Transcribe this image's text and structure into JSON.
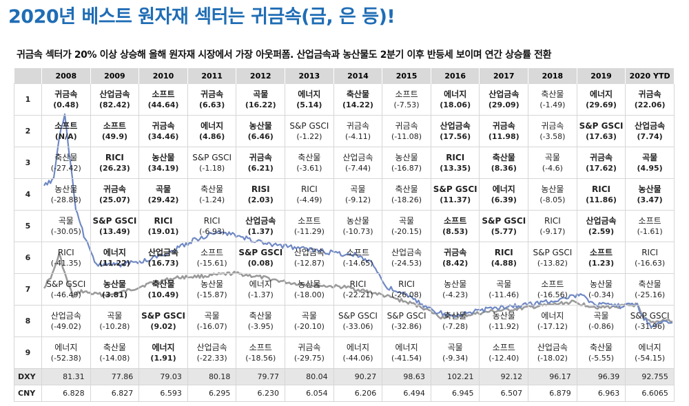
{
  "title": "2020년 베스트 원자재 섹터는 귀금속(금, 은 등)!",
  "subtitle": "귀금속 섹터가 20% 이상 상승해 올해 원자재 시장에서 가장 아웃퍼폼. 산업금속과 농산물도 2분기 이후 반등세 보이며 연간 상승률 전환",
  "colors": {
    "title": "#1f6db5",
    "header_bg": "#d9d9d9",
    "red": "#e11a1a",
    "blue": "#1d4fa6",
    "line_blue": "#6f88c4",
    "line_gray": "#9a9a9a"
  },
  "years": [
    "2008",
    "2009",
    "2010",
    "2011",
    "2012",
    "2013",
    "2014",
    "2015",
    "2016",
    "2017",
    "2018",
    "2019",
    "2020 YTD"
  ],
  "rows": [
    {
      "rank": "1",
      "cells": [
        {
          "name": "귀금속",
          "value": "(0.48)",
          "style": "b"
        },
        {
          "name": "산업금속",
          "value": "(82.42)",
          "style": "b"
        },
        {
          "name": "소프트",
          "value": "(44.64)",
          "style": "b"
        },
        {
          "name": "귀금속",
          "value": "(6.63)",
          "style": "b"
        },
        {
          "name": "곡물",
          "value": "(16.22)",
          "style": "b"
        },
        {
          "name": "에너지",
          "value": "(5.14)",
          "style": "b"
        },
        {
          "name": "축산물",
          "value": "(14.22)",
          "style": "b"
        },
        {
          "name": "소프트",
          "value": "(-7.53)",
          "style": ""
        },
        {
          "name": "에너지",
          "value": "(18.06)",
          "style": "b"
        },
        {
          "name": "산업금속",
          "value": "(29.09)",
          "style": "b"
        },
        {
          "name": "축산물",
          "value": "(-1.49)",
          "style": ""
        },
        {
          "name": "에너지",
          "value": "(29.69)",
          "style": "b"
        },
        {
          "name": "귀금속",
          "value": "(22.06)",
          "style": "b"
        }
      ]
    },
    {
      "rank": "2",
      "cells": [
        {
          "name": "소프트",
          "value": "(N/A)",
          "style": "b"
        },
        {
          "name": "소프트",
          "value": "(49.9)",
          "style": "b"
        },
        {
          "name": "귀금속",
          "value": "(34.46)",
          "style": "b"
        },
        {
          "name": "에너지",
          "value": "(4.86)",
          "style": "b"
        },
        {
          "name": "농산물",
          "value": "(6.46)",
          "style": "b"
        },
        {
          "name": "S&P GSCI",
          "value": "(-1.22)",
          "style": "red"
        },
        {
          "name": "귀금속",
          "value": "(-4.11)",
          "style": ""
        },
        {
          "name": "귀금속",
          "value": "(-11.08)",
          "style": ""
        },
        {
          "name": "산업금속",
          "value": "(17.56)",
          "style": "b"
        },
        {
          "name": "귀금속",
          "value": "(11.98)",
          "style": "b"
        },
        {
          "name": "귀금속",
          "value": "(-3.58)",
          "style": ""
        },
        {
          "name": "S&P GSCI",
          "value": "(17.63)",
          "style": "redb"
        },
        {
          "name": "산업금속",
          "value": "(7.74)",
          "style": "b"
        }
      ]
    },
    {
      "rank": "3",
      "cells": [
        {
          "name": "축산물",
          "value": "(-27.42)",
          "style": ""
        },
        {
          "name": "RICI",
          "value": "(26.23)",
          "style": "blub"
        },
        {
          "name": "농산물",
          "value": "(34.19)",
          "style": "b"
        },
        {
          "name": "S&P GSCI",
          "value": "(-1.18)",
          "style": "red"
        },
        {
          "name": "귀금속",
          "value": "(6.21)",
          "style": "b"
        },
        {
          "name": "축산물",
          "value": "(-3.61)",
          "style": ""
        },
        {
          "name": "산업금속",
          "value": "(-7.44)",
          "style": ""
        },
        {
          "name": "농산물",
          "value": "(-16.87)",
          "style": ""
        },
        {
          "name": "RICI",
          "value": "(13.35)",
          "style": "blub"
        },
        {
          "name": "축산물",
          "value": "(8.36)",
          "style": "b"
        },
        {
          "name": "곡물",
          "value": "(-4.6)",
          "style": ""
        },
        {
          "name": "귀금속",
          "value": "(17.62)",
          "style": "b"
        },
        {
          "name": "곡물",
          "value": "(4.95)",
          "style": "b"
        }
      ]
    },
    {
      "rank": "4",
      "cells": [
        {
          "name": "농산물",
          "value": "(-28.88)",
          "style": ""
        },
        {
          "name": "귀금속",
          "value": "(25.07)",
          "style": "b"
        },
        {
          "name": "곡물",
          "value": "(29.42)",
          "style": "b"
        },
        {
          "name": "축산물",
          "value": "(-1.24)",
          "style": ""
        },
        {
          "name": "RISI",
          "value": "(2.03)",
          "style": "blub"
        },
        {
          "name": "RICI",
          "value": "(-4.49)",
          "style": "blu"
        },
        {
          "name": "곡물",
          "value": "(-9.12)",
          "style": ""
        },
        {
          "name": "축산물",
          "value": "(-18.26)",
          "style": ""
        },
        {
          "name": "S&P GSCI",
          "value": "(11.37)",
          "style": "redb"
        },
        {
          "name": "에너지",
          "value": "(6.39)",
          "style": "b"
        },
        {
          "name": "농산물",
          "value": "(-8.05)",
          "style": ""
        },
        {
          "name": "RICI",
          "value": "(11.86)",
          "style": "blub"
        },
        {
          "name": "농산물",
          "value": "(3.47)",
          "style": "b"
        }
      ]
    },
    {
      "rank": "5",
      "cells": [
        {
          "name": "곡물",
          "value": "(-30.05)",
          "style": ""
        },
        {
          "name": "S&P GSCI",
          "value": "(13.49)",
          "style": "redb"
        },
        {
          "name": "RICI",
          "value": "(19.01)",
          "style": "blub"
        },
        {
          "name": "RICI",
          "value": "(-6.93)",
          "style": "blu"
        },
        {
          "name": "산업금속",
          "value": "(1.37)",
          "style": "b"
        },
        {
          "name": "소프트",
          "value": "(-11.29)",
          "style": ""
        },
        {
          "name": "농산물",
          "value": "(-10.73)",
          "style": ""
        },
        {
          "name": "곡물",
          "value": "(-20.15)",
          "style": ""
        },
        {
          "name": "소프트",
          "value": "(8.53)",
          "style": "b"
        },
        {
          "name": "S&P GSCI",
          "value": "(5.77)",
          "style": "redb"
        },
        {
          "name": "RICI",
          "value": "(-9.17)",
          "style": "blu"
        },
        {
          "name": "산업금속",
          "value": "(2.59)",
          "style": "b"
        },
        {
          "name": "소프트",
          "value": "(-1.61)",
          "style": ""
        }
      ]
    },
    {
      "rank": "6",
      "cells": [
        {
          "name": "RICI",
          "value": "(-41.35)",
          "style": "blu"
        },
        {
          "name": "에너지",
          "value": "(11.22)",
          "style": "b"
        },
        {
          "name": "산업금속",
          "value": "(16.73)",
          "style": "b"
        },
        {
          "name": "소프트",
          "value": "(-15.61)",
          "style": ""
        },
        {
          "name": "S&P GSCI",
          "value": "(0.08)",
          "style": "redb"
        },
        {
          "name": "산업금속",
          "value": "(-12.87)",
          "style": ""
        },
        {
          "name": "소프트",
          "value": "(-14.65)",
          "style": ""
        },
        {
          "name": "산업금속",
          "value": "(-24.53)",
          "style": ""
        },
        {
          "name": "귀금속",
          "value": "(8.42)",
          "style": "b"
        },
        {
          "name": "RICI",
          "value": "(4.88)",
          "style": "blub"
        },
        {
          "name": "S&P GSCI",
          "value": "(-13.82)",
          "style": "red"
        },
        {
          "name": "소프트",
          "value": "(1.23)",
          "style": "b"
        },
        {
          "name": "RICI",
          "value": "(-16.63)",
          "style": "blu"
        }
      ]
    },
    {
      "rank": "7",
      "cells": [
        {
          "name": "S&P GSCI",
          "value": "(-46.49)",
          "style": "red"
        },
        {
          "name": "농산물",
          "value": "(3.81)",
          "style": "b"
        },
        {
          "name": "축산물",
          "value": "(10.49)",
          "style": "b"
        },
        {
          "name": "농산물",
          "value": "(-15.87)",
          "style": ""
        },
        {
          "name": "에너지",
          "value": "(-1.37)",
          "style": ""
        },
        {
          "name": "농산물",
          "value": "(-18.00)",
          "style": ""
        },
        {
          "name": "RICI",
          "value": "(-22.21)",
          "style": "blu"
        },
        {
          "name": "RICI",
          "value": "(-26.08)",
          "style": "blu"
        },
        {
          "name": "농산물",
          "value": "(-4.23)",
          "style": ""
        },
        {
          "name": "곡물",
          "value": "(-11.46)",
          "style": ""
        },
        {
          "name": "소프트",
          "value": "(-16.56)",
          "style": ""
        },
        {
          "name": "농산물",
          "value": "(-0.34)",
          "style": ""
        },
        {
          "name": "축산물",
          "value": "(-25.16)",
          "style": ""
        }
      ]
    },
    {
      "rank": "8",
      "cells": [
        {
          "name": "산업금속",
          "value": "(-49.02)",
          "style": ""
        },
        {
          "name": "곡물",
          "value": "(-10.28)",
          "style": ""
        },
        {
          "name": "S&P GSCI",
          "value": "(9.02)",
          "style": "redb"
        },
        {
          "name": "곡물",
          "value": "(-16.07)",
          "style": ""
        },
        {
          "name": "축산물",
          "value": "(-3.95)",
          "style": ""
        },
        {
          "name": "곡물",
          "value": "(-20.10)",
          "style": ""
        },
        {
          "name": "S&P GSCI",
          "value": "(-33.06)",
          "style": "red"
        },
        {
          "name": "S&P GSCI",
          "value": "(-32.86)",
          "style": "red"
        },
        {
          "name": "축산물",
          "value": "(-7.28)",
          "style": ""
        },
        {
          "name": "농산물",
          "value": "(-11.92)",
          "style": ""
        },
        {
          "name": "에너지",
          "value": "(-17.12)",
          "style": ""
        },
        {
          "name": "곡물",
          "value": "(-0.86)",
          "style": ""
        },
        {
          "name": "S&P GSCI",
          "value": "(-31.96)",
          "style": "red"
        }
      ]
    },
    {
      "rank": "9",
      "cells": [
        {
          "name": "에너지",
          "value": "(-52.38)",
          "style": ""
        },
        {
          "name": "축산물",
          "value": "(-14.08)",
          "style": ""
        },
        {
          "name": "에너지",
          "value": "(1.91)",
          "style": "blub"
        },
        {
          "name": "산업금속",
          "value": "(-22.33)",
          "style": ""
        },
        {
          "name": "소프트",
          "value": "(-18.56)",
          "style": ""
        },
        {
          "name": "귀금속",
          "value": "(-29.75)",
          "style": ""
        },
        {
          "name": "에너지",
          "value": "(-44.06)",
          "style": ""
        },
        {
          "name": "에너지",
          "value": "(-41.54)",
          "style": ""
        },
        {
          "name": "곡물",
          "value": "(-9.34)",
          "style": ""
        },
        {
          "name": "소프트",
          "value": "(-12.40)",
          "style": ""
        },
        {
          "name": "산업금속",
          "value": "(-18.02)",
          "style": ""
        },
        {
          "name": "축산물",
          "value": "(-5.55)",
          "style": ""
        },
        {
          "name": "에너지",
          "value": "(-54.15)",
          "style": ""
        }
      ]
    }
  ],
  "stats": [
    {
      "label": "DXY",
      "values": [
        "81.31",
        "77.86",
        "79.03",
        "80.18",
        "79.77",
        "80.04",
        "90.27",
        "98.63",
        "102.21",
        "92.12",
        "96.17",
        "96.39",
        "92.755"
      ]
    },
    {
      "label": "CNY",
      "values": [
        "6.828",
        "6.827",
        "6.593",
        "6.295",
        "6.230",
        "6.054",
        "6.206",
        "6.494",
        "6.945",
        "6.507",
        "6.879",
        "6.963",
        "6.6065"
      ]
    }
  ]
}
